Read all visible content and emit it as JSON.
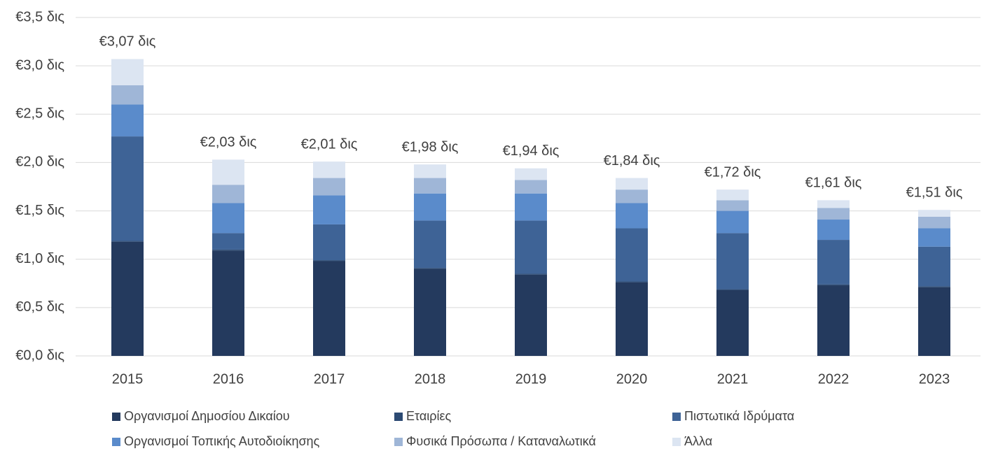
{
  "chart_data": {
    "type": "stacked-bar",
    "categories": [
      "2015",
      "2016",
      "2017",
      "2018",
      "2019",
      "2020",
      "2021",
      "2022",
      "2023"
    ],
    "series": [
      {
        "name": "Οργανισμοί Δημοσίου Δικαίου",
        "color": "#243a5e",
        "values": [
          1.18,
          1.09,
          0.98,
          0.9,
          0.84,
          0.76,
          0.68,
          0.73,
          0.71
        ]
      },
      {
        "name": "Εταιρίες",
        "color": "#2c4a73",
        "values": [
          0.01,
          0.01,
          0.01,
          0.01,
          0.01,
          0.01,
          0.01,
          0.01,
          0.01
        ]
      },
      {
        "name": "Πιστωτικά Ιδρύματα",
        "color": "#3e6396",
        "values": [
          1.08,
          0.17,
          0.37,
          0.49,
          0.55,
          0.55,
          0.58,
          0.46,
          0.41
        ]
      },
      {
        "name": "Οργανισμοί Τοπικής Αυτοδιοίκησης",
        "color": "#5a8bcb",
        "values": [
          0.33,
          0.31,
          0.3,
          0.28,
          0.28,
          0.26,
          0.23,
          0.21,
          0.19
        ]
      },
      {
        "name": "Φυσικά Πρόσωπα / Καταναλωτικά",
        "color": "#9fb6d7",
        "values": [
          0.2,
          0.19,
          0.18,
          0.16,
          0.14,
          0.14,
          0.11,
          0.12,
          0.12
        ]
      },
      {
        "name": "Άλλα",
        "color": "#dce5f2",
        "values": [
          0.27,
          0.26,
          0.17,
          0.14,
          0.12,
          0.12,
          0.11,
          0.08,
          0.07
        ]
      }
    ],
    "totals": [
      3.07,
      2.03,
      2.01,
      1.98,
      1.94,
      1.84,
      1.72,
      1.61,
      1.51
    ],
    "total_labels": [
      "€3,07 δις",
      "€2,03 δις",
      "€2,01 δις",
      "€1,98 δις",
      "€1,94 δις",
      "€1,84 δις",
      "€1,72 δις",
      "€1,61 δις",
      "€1,51 δις"
    ],
    "ylim": [
      0,
      3.5
    ],
    "yticks": [
      {
        "value": 0,
        "label": "€0,0 δις"
      },
      {
        "value": 0.5,
        "label": "€0,5 δις"
      },
      {
        "value": 1,
        "label": "€1,0 δις"
      },
      {
        "value": 1.5,
        "label": "€1,5 δις"
      },
      {
        "value": 2,
        "label": "€2,0 δις"
      },
      {
        "value": 2.5,
        "label": "€2,5 δις"
      },
      {
        "value": 3,
        "label": "€3,0 δις"
      },
      {
        "value": 3.5,
        "label": "€3,5 δις"
      }
    ],
    "grid": true
  }
}
